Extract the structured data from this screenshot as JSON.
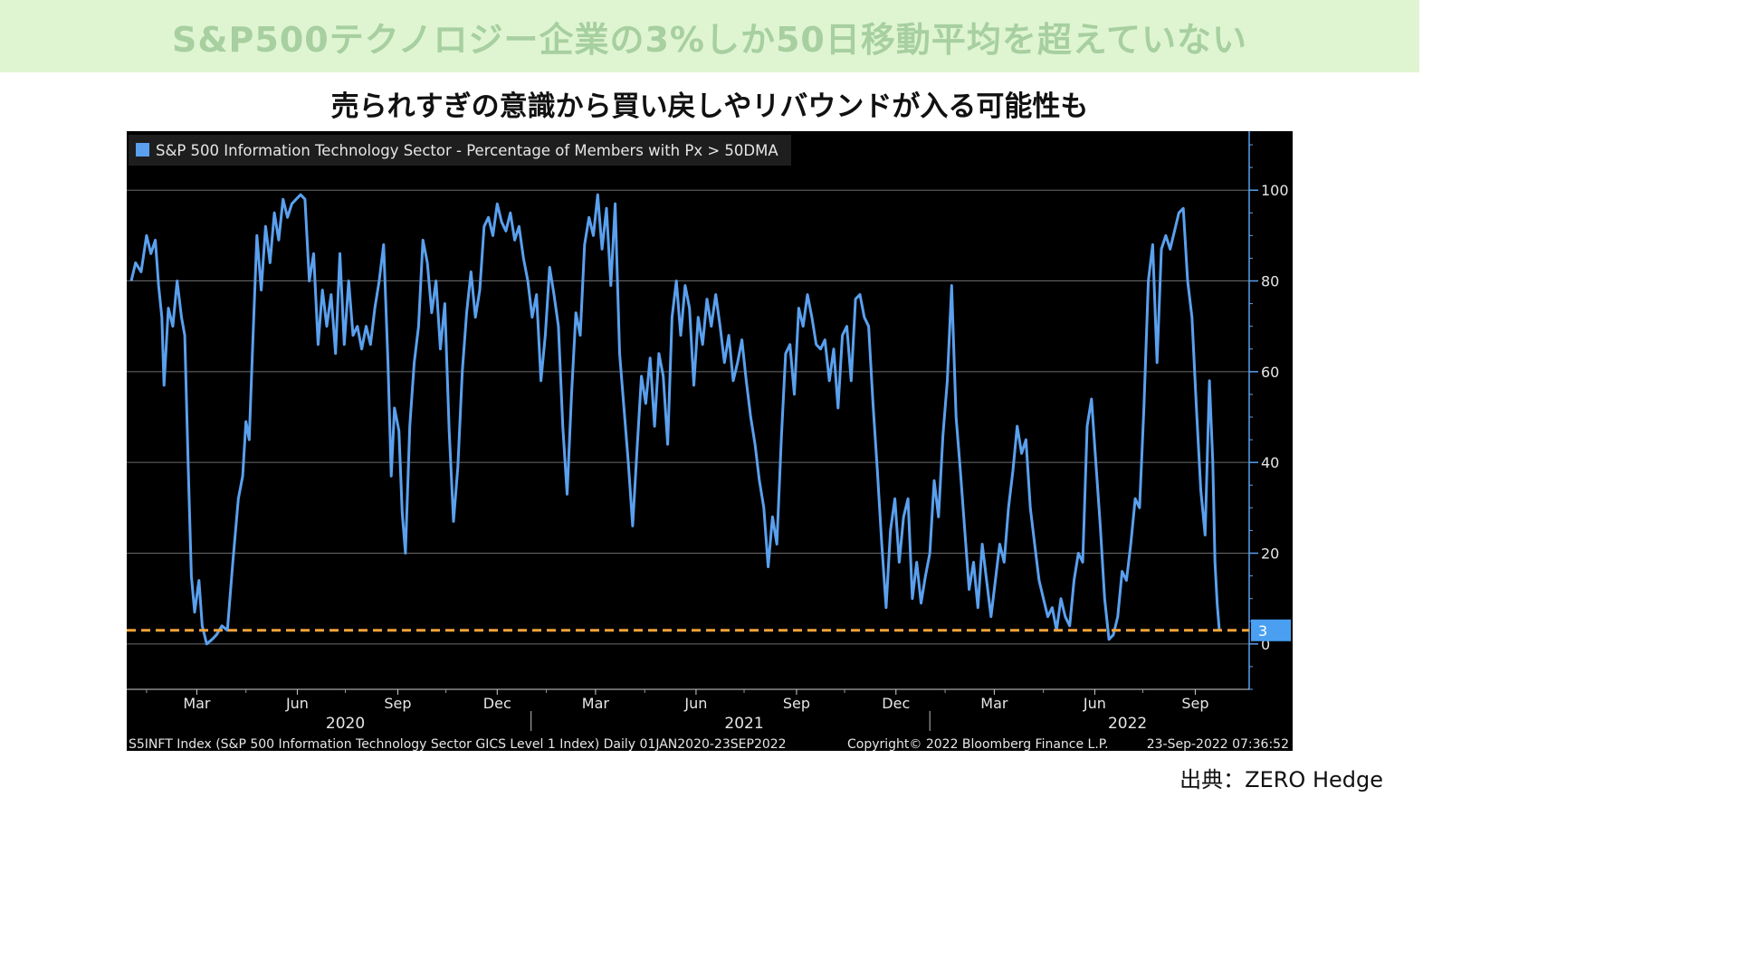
{
  "header": {
    "title": "S&P500テクノロジー企業の3%しか50日移動平均を超えていない",
    "subtitle": "売られすぎの意識から買い戻しやリバウンドが入る可能性も"
  },
  "source": "出典：ZERO Hedge",
  "colors": {
    "banner_bg": "#dff5d2",
    "banner_text": "#a7cfa0",
    "chart_bg": "#000000",
    "line": "#5aa0ee",
    "dashed": "#f2a33a",
    "axis": "#5aa0ee",
    "grid": "#6a6a6a"
  },
  "chart_data": {
    "type": "line",
    "legend": "S&P 500 Information Technology Sector - Percentage of Members with Px > 50DMA",
    "legend_position": "top-left",
    "ylim": [
      -10,
      113
    ],
    "y_ticks": [
      0,
      20,
      40,
      60,
      80,
      100
    ],
    "grid": true,
    "x_range": [
      "2020-01-01",
      "2022-09-23"
    ],
    "x_ticks": [
      {
        "label": "Mar",
        "date": "2020-03-01"
      },
      {
        "label": "Jun",
        "date": "2020-06-01"
      },
      {
        "label": "Sep",
        "date": "2020-09-01"
      },
      {
        "label": "Dec",
        "date": "2020-12-01"
      },
      {
        "label": "Mar",
        "date": "2021-03-01"
      },
      {
        "label": "Jun",
        "date": "2021-06-01"
      },
      {
        "label": "Sep",
        "date": "2021-09-01"
      },
      {
        "label": "Dec",
        "date": "2021-12-01"
      },
      {
        "label": "Mar",
        "date": "2022-03-01"
      },
      {
        "label": "Jun",
        "date": "2022-06-01"
      },
      {
        "label": "Sep",
        "date": "2022-09-01"
      }
    ],
    "year_labels": [
      {
        "label": "2020",
        "date": "2020-07-15"
      },
      {
        "label": "2021",
        "date": "2021-07-15"
      },
      {
        "label": "2022",
        "date": "2022-07-01"
      }
    ],
    "reference_line": {
      "value": 3,
      "label": "3",
      "style": "dashed"
    },
    "last_value_label": "3",
    "series": [
      {
        "name": "S&P 500 Information Technology Sector - Percentage of Members with Px > 50DMA",
        "points": [
          [
            "2020-01-01",
            80
          ],
          [
            "2020-01-05",
            84
          ],
          [
            "2020-01-10",
            82
          ],
          [
            "2020-01-15",
            90
          ],
          [
            "2020-01-19",
            86
          ],
          [
            "2020-01-23",
            89
          ],
          [
            "2020-01-26",
            79
          ],
          [
            "2020-01-29",
            72
          ],
          [
            "2020-01-31",
            57
          ],
          [
            "2020-02-04",
            74
          ],
          [
            "2020-02-08",
            70
          ],
          [
            "2020-02-12",
            80
          ],
          [
            "2020-02-16",
            72
          ],
          [
            "2020-02-19",
            68
          ],
          [
            "2020-02-22",
            40
          ],
          [
            "2020-02-25",
            15
          ],
          [
            "2020-02-28",
            7
          ],
          [
            "2020-03-03",
            14
          ],
          [
            "2020-03-06",
            4
          ],
          [
            "2020-03-10",
            0
          ],
          [
            "2020-03-15",
            1
          ],
          [
            "2020-03-19",
            2
          ],
          [
            "2020-03-24",
            4
          ],
          [
            "2020-03-29",
            3
          ],
          [
            "2020-04-03",
            18
          ],
          [
            "2020-04-08",
            32
          ],
          [
            "2020-04-12",
            37
          ],
          [
            "2020-04-15",
            49
          ],
          [
            "2020-04-18",
            45
          ],
          [
            "2020-04-21",
            65
          ],
          [
            "2020-04-25",
            90
          ],
          [
            "2020-04-29",
            78
          ],
          [
            "2020-05-03",
            92
          ],
          [
            "2020-05-07",
            84
          ],
          [
            "2020-05-11",
            95
          ],
          [
            "2020-05-15",
            89
          ],
          [
            "2020-05-19",
            98
          ],
          [
            "2020-05-23",
            94
          ],
          [
            "2020-05-27",
            97
          ],
          [
            "2020-05-31",
            98
          ],
          [
            "2020-06-04",
            99
          ],
          [
            "2020-06-08",
            98
          ],
          [
            "2020-06-12",
            80
          ],
          [
            "2020-06-16",
            86
          ],
          [
            "2020-06-20",
            66
          ],
          [
            "2020-06-24",
            78
          ],
          [
            "2020-06-28",
            70
          ],
          [
            "2020-07-02",
            77
          ],
          [
            "2020-07-06",
            64
          ],
          [
            "2020-07-10",
            86
          ],
          [
            "2020-07-14",
            66
          ],
          [
            "2020-07-18",
            80
          ],
          [
            "2020-07-22",
            68
          ],
          [
            "2020-07-26",
            70
          ],
          [
            "2020-07-30",
            65
          ],
          [
            "2020-08-03",
            70
          ],
          [
            "2020-08-07",
            66
          ],
          [
            "2020-08-11",
            74
          ],
          [
            "2020-08-15",
            80
          ],
          [
            "2020-08-19",
            88
          ],
          [
            "2020-08-23",
            62
          ],
          [
            "2020-08-26",
            37
          ],
          [
            "2020-08-29",
            52
          ],
          [
            "2020-09-02",
            47
          ],
          [
            "2020-09-05",
            29
          ],
          [
            "2020-09-08",
            20
          ],
          [
            "2020-09-12",
            48
          ],
          [
            "2020-09-16",
            62
          ],
          [
            "2020-09-20",
            70
          ],
          [
            "2020-09-24",
            89
          ],
          [
            "2020-09-28",
            84
          ],
          [
            "2020-10-02",
            73
          ],
          [
            "2020-10-06",
            80
          ],
          [
            "2020-10-10",
            65
          ],
          [
            "2020-10-14",
            75
          ],
          [
            "2020-10-18",
            47
          ],
          [
            "2020-10-22",
            27
          ],
          [
            "2020-10-26",
            39
          ],
          [
            "2020-10-30",
            60
          ],
          [
            "2020-11-03",
            73
          ],
          [
            "2020-11-07",
            82
          ],
          [
            "2020-11-11",
            72
          ],
          [
            "2020-11-15",
            78
          ],
          [
            "2020-11-19",
            92
          ],
          [
            "2020-11-23",
            94
          ],
          [
            "2020-11-27",
            90
          ],
          [
            "2020-12-01",
            97
          ],
          [
            "2020-12-05",
            93
          ],
          [
            "2020-12-09",
            91
          ],
          [
            "2020-12-13",
            95
          ],
          [
            "2020-12-17",
            89
          ],
          [
            "2020-12-21",
            92
          ],
          [
            "2020-12-25",
            85
          ],
          [
            "2020-12-29",
            80
          ],
          [
            "2021-01-02",
            72
          ],
          [
            "2021-01-06",
            77
          ],
          [
            "2021-01-10",
            58
          ],
          [
            "2021-01-14",
            68
          ],
          [
            "2021-01-18",
            83
          ],
          [
            "2021-01-22",
            77
          ],
          [
            "2021-01-26",
            70
          ],
          [
            "2021-01-30",
            48
          ],
          [
            "2021-02-03",
            33
          ],
          [
            "2021-02-07",
            55
          ],
          [
            "2021-02-11",
            73
          ],
          [
            "2021-02-15",
            68
          ],
          [
            "2021-02-19",
            88
          ],
          [
            "2021-02-23",
            94
          ],
          [
            "2021-02-27",
            90
          ],
          [
            "2021-03-03",
            99
          ],
          [
            "2021-03-07",
            87
          ],
          [
            "2021-03-11",
            96
          ],
          [
            "2021-03-15",
            79
          ],
          [
            "2021-03-19",
            97
          ],
          [
            "2021-03-23",
            64
          ],
          [
            "2021-03-27",
            52
          ],
          [
            "2021-03-31",
            40
          ],
          [
            "2021-04-04",
            26
          ],
          [
            "2021-04-08",
            43
          ],
          [
            "2021-04-12",
            59
          ],
          [
            "2021-04-16",
            53
          ],
          [
            "2021-04-20",
            63
          ],
          [
            "2021-04-24",
            48
          ],
          [
            "2021-04-28",
            64
          ],
          [
            "2021-05-02",
            59
          ],
          [
            "2021-05-06",
            44
          ],
          [
            "2021-05-10",
            72
          ],
          [
            "2021-05-14",
            80
          ],
          [
            "2021-05-18",
            68
          ],
          [
            "2021-05-22",
            79
          ],
          [
            "2021-05-26",
            74
          ],
          [
            "2021-05-30",
            57
          ],
          [
            "2021-06-03",
            72
          ],
          [
            "2021-06-07",
            66
          ],
          [
            "2021-06-11",
            76
          ],
          [
            "2021-06-15",
            70
          ],
          [
            "2021-06-19",
            77
          ],
          [
            "2021-06-23",
            70
          ],
          [
            "2021-06-27",
            62
          ],
          [
            "2021-07-01",
            68
          ],
          [
            "2021-07-05",
            58
          ],
          [
            "2021-07-09",
            62
          ],
          [
            "2021-07-13",
            67
          ],
          [
            "2021-07-17",
            58
          ],
          [
            "2021-07-21",
            50
          ],
          [
            "2021-07-25",
            44
          ],
          [
            "2021-07-29",
            36
          ],
          [
            "2021-08-02",
            30
          ],
          [
            "2021-08-06",
            17
          ],
          [
            "2021-08-10",
            28
          ],
          [
            "2021-08-14",
            22
          ],
          [
            "2021-08-18",
            45
          ],
          [
            "2021-08-22",
            64
          ],
          [
            "2021-08-26",
            66
          ],
          [
            "2021-08-30",
            55
          ],
          [
            "2021-09-03",
            74
          ],
          [
            "2021-09-07",
            70
          ],
          [
            "2021-09-11",
            77
          ],
          [
            "2021-09-15",
            72
          ],
          [
            "2021-09-19",
            66
          ],
          [
            "2021-09-23",
            65
          ],
          [
            "2021-09-27",
            67
          ],
          [
            "2021-10-01",
            58
          ],
          [
            "2021-10-05",
            65
          ],
          [
            "2021-10-09",
            52
          ],
          [
            "2021-10-13",
            68
          ],
          [
            "2021-10-17",
            70
          ],
          [
            "2021-10-21",
            58
          ],
          [
            "2021-10-25",
            76
          ],
          [
            "2021-10-29",
            77
          ],
          [
            "2021-11-02",
            72
          ],
          [
            "2021-11-06",
            70
          ],
          [
            "2021-11-10",
            53
          ],
          [
            "2021-11-14",
            38
          ],
          [
            "2021-11-18",
            22
          ],
          [
            "2021-11-22",
            8
          ],
          [
            "2021-11-26",
            25
          ],
          [
            "2021-11-30",
            32
          ],
          [
            "2021-12-04",
            18
          ],
          [
            "2021-12-08",
            28
          ],
          [
            "2021-12-12",
            32
          ],
          [
            "2021-12-16",
            10
          ],
          [
            "2021-12-20",
            18
          ],
          [
            "2021-12-24",
            9
          ],
          [
            "2021-12-28",
            15
          ],
          [
            "2022-01-01",
            20
          ],
          [
            "2022-01-05",
            36
          ],
          [
            "2022-01-09",
            28
          ],
          [
            "2022-01-13",
            46
          ],
          [
            "2022-01-17",
            58
          ],
          [
            "2022-01-21",
            79
          ],
          [
            "2022-01-25",
            50
          ],
          [
            "2022-01-29",
            38
          ],
          [
            "2022-02-02",
            25
          ],
          [
            "2022-02-06",
            12
          ],
          [
            "2022-02-10",
            18
          ],
          [
            "2022-02-14",
            8
          ],
          [
            "2022-02-18",
            22
          ],
          [
            "2022-02-22",
            14
          ],
          [
            "2022-02-26",
            6
          ],
          [
            "2022-03-02",
            14
          ],
          [
            "2022-03-06",
            22
          ],
          [
            "2022-03-10",
            18
          ],
          [
            "2022-03-14",
            30
          ],
          [
            "2022-03-18",
            38
          ],
          [
            "2022-03-22",
            48
          ],
          [
            "2022-03-26",
            42
          ],
          [
            "2022-03-30",
            45
          ],
          [
            "2022-04-03",
            30
          ],
          [
            "2022-04-07",
            22
          ],
          [
            "2022-04-11",
            14
          ],
          [
            "2022-04-15",
            10
          ],
          [
            "2022-04-19",
            6
          ],
          [
            "2022-04-23",
            8
          ],
          [
            "2022-04-27",
            3
          ],
          [
            "2022-05-01",
            10
          ],
          [
            "2022-05-05",
            6
          ],
          [
            "2022-05-09",
            4
          ],
          [
            "2022-05-13",
            14
          ],
          [
            "2022-05-17",
            20
          ],
          [
            "2022-05-21",
            18
          ],
          [
            "2022-05-25",
            48
          ],
          [
            "2022-05-29",
            54
          ],
          [
            "2022-06-02",
            40
          ],
          [
            "2022-06-06",
            26
          ],
          [
            "2022-06-10",
            10
          ],
          [
            "2022-06-14",
            1
          ],
          [
            "2022-06-18",
            2
          ],
          [
            "2022-06-22",
            6
          ],
          [
            "2022-06-26",
            16
          ],
          [
            "2022-06-30",
            14
          ],
          [
            "2022-07-04",
            22
          ],
          [
            "2022-07-08",
            32
          ],
          [
            "2022-07-12",
            30
          ],
          [
            "2022-07-16",
            52
          ],
          [
            "2022-07-20",
            80
          ],
          [
            "2022-07-24",
            88
          ],
          [
            "2022-07-28",
            62
          ],
          [
            "2022-08-01",
            87
          ],
          [
            "2022-08-05",
            90
          ],
          [
            "2022-08-09",
            87
          ],
          [
            "2022-08-13",
            91
          ],
          [
            "2022-08-17",
            95
          ],
          [
            "2022-08-21",
            96
          ],
          [
            "2022-08-25",
            80
          ],
          [
            "2022-08-29",
            72
          ],
          [
            "2022-09-02",
            52
          ],
          [
            "2022-09-06",
            34
          ],
          [
            "2022-09-10",
            24
          ],
          [
            "2022-09-14",
            58
          ],
          [
            "2022-09-17",
            40
          ],
          [
            "2022-09-19",
            18
          ],
          [
            "2022-09-21",
            9
          ],
          [
            "2022-09-23",
            3
          ]
        ]
      }
    ]
  },
  "footer": {
    "left": "S5INFT Index (S&P 500 Information Technology Sector GICS Level 1 Index)  Daily 01JAN2020-23SEP2022",
    "center": "Copyright© 2022 Bloomberg Finance L.P.",
    "right": "23-Sep-2022 07:36:52"
  }
}
